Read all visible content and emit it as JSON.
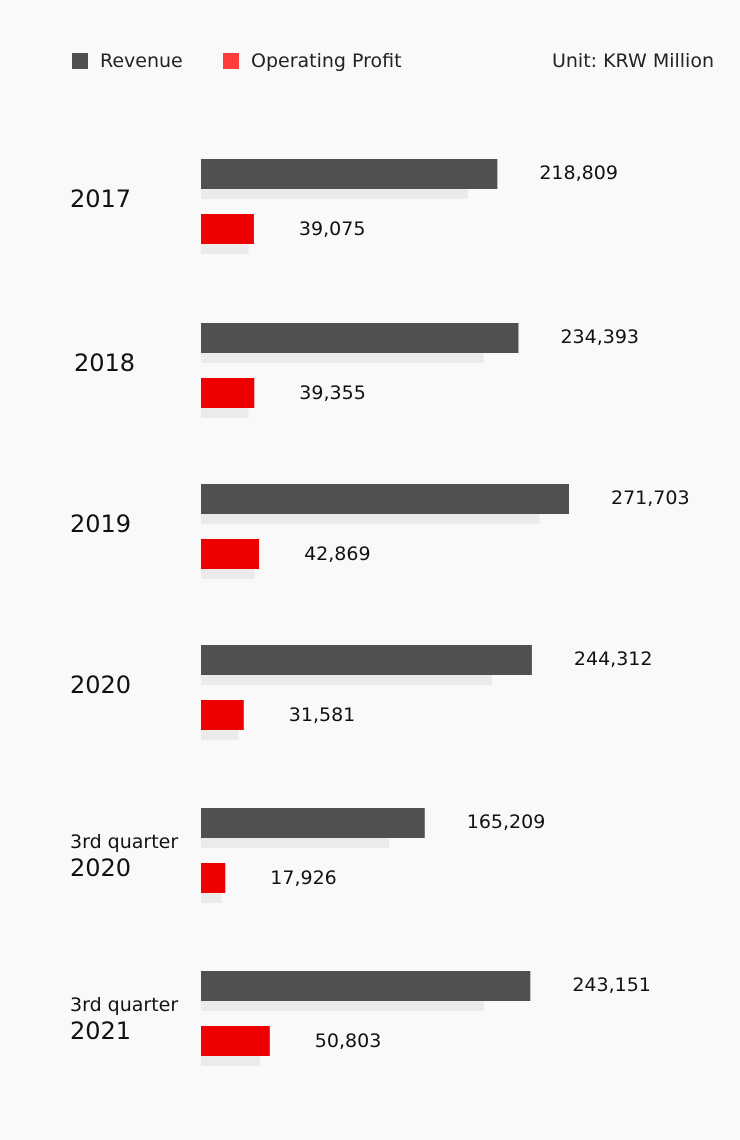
{
  "legend": {
    "revenue_label": "Revenue",
    "profit_label": "Operating Profit",
    "unit": "Unit: KRW Million"
  },
  "colors": {
    "revenue": "#505050",
    "profit": "#ee0000",
    "shadow": "#ebebeb",
    "background": "#f9f9f9",
    "legend_profit": "#ff3b3b"
  },
  "chart_data": {
    "type": "bar",
    "orientation": "horizontal",
    "categories": [
      [
        "2017"
      ],
      [
        "2018"
      ],
      [
        "2019"
      ],
      [
        "2020"
      ],
      [
        "3rd quarter",
        "2020"
      ],
      [
        "3rd quarter",
        "2021"
      ]
    ],
    "series": [
      {
        "name": "Revenue",
        "values": [
          218809,
          234393,
          271703,
          244312,
          165209,
          243151
        ],
        "labels": [
          "218,809",
          "234,393",
          "271,703",
          "244,312",
          "165,209",
          "243,151"
        ]
      },
      {
        "name": "Operating Profit",
        "values": [
          39075,
          39355,
          42869,
          31581,
          17926,
          50803
        ],
        "labels": [
          "39,075",
          "39,355",
          "42,869",
          "31,581",
          "17,926",
          "50,803"
        ]
      }
    ],
    "unit": "KRW Million",
    "legend": "top",
    "grid": false,
    "title": "",
    "xlabel": "",
    "ylabel": ""
  }
}
